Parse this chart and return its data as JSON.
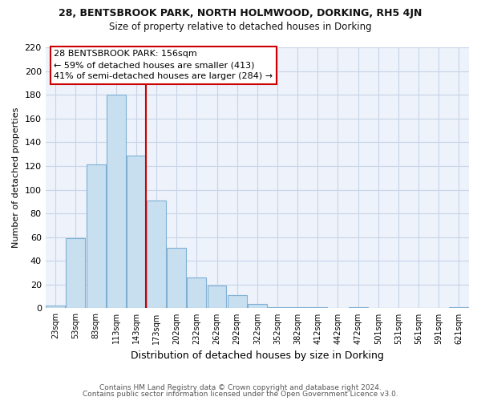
{
  "title1": "28, BENTSBROOK PARK, NORTH HOLMWOOD, DORKING, RH5 4JN",
  "title2": "Size of property relative to detached houses in Dorking",
  "xlabel": "Distribution of detached houses by size in Dorking",
  "ylabel": "Number of detached properties",
  "bar_labels": [
    "23sqm",
    "53sqm",
    "83sqm",
    "113sqm",
    "143sqm",
    "173sqm",
    "202sqm",
    "232sqm",
    "262sqm",
    "292sqm",
    "322sqm",
    "352sqm",
    "382sqm",
    "412sqm",
    "442sqm",
    "472sqm",
    "501sqm",
    "531sqm",
    "561sqm",
    "591sqm",
    "621sqm"
  ],
  "bar_heights": [
    2,
    59,
    121,
    180,
    129,
    91,
    51,
    26,
    19,
    11,
    4,
    1,
    1,
    1,
    0,
    1,
    0,
    0,
    0,
    0,
    1
  ],
  "bar_color": "#c8dff0",
  "bar_edge_color": "#7fb0d4",
  "vline_x": 4.5,
  "vline_color": "#cc0000",
  "annotation_text": "28 BENTSBROOK PARK: 156sqm\n← 59% of detached houses are smaller (413)\n41% of semi-detached houses are larger (284) →",
  "annotation_box_color": "#ffffff",
  "annotation_box_edge": "#cc0000",
  "ylim": [
    0,
    220
  ],
  "yticks": [
    0,
    20,
    40,
    60,
    80,
    100,
    120,
    140,
    160,
    180,
    200,
    220
  ],
  "footer1": "Contains HM Land Registry data © Crown copyright and database right 2024.",
  "footer2": "Contains public sector information licensed under the Open Government Licence v3.0.",
  "bg_color": "#ffffff",
  "plot_bg_color": "#edf2fb",
  "grid_color": "#c8d4e8"
}
